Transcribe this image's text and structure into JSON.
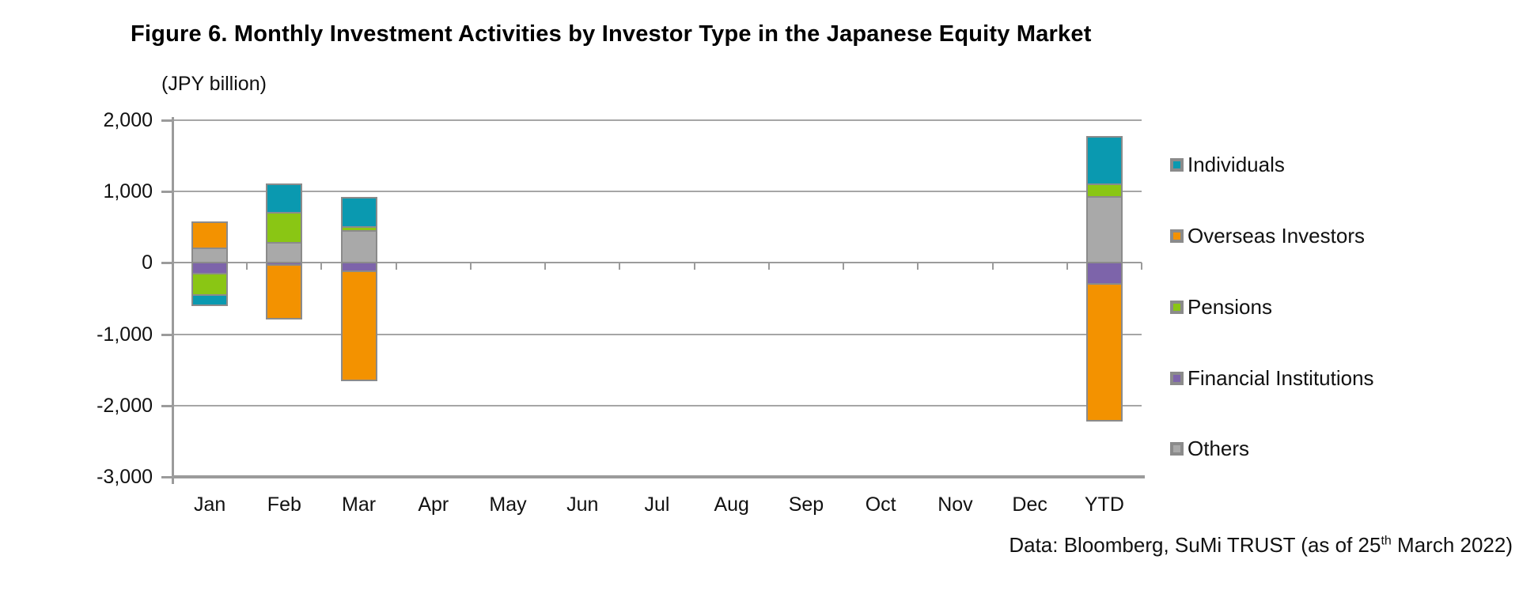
{
  "title": "Figure 6. Monthly Investment Activities by Investor Type in the Japanese Equity Market",
  "footer": {
    "prefix": "Data: Bloomberg, SuMi TRUST (as of 25",
    "superscript": "th",
    "suffix": " March 2022)"
  },
  "colors": {
    "individuals": "#0a99b0",
    "overseas_investors": "#f39200",
    "pensions": "#8ac614",
    "financial_institutions": "#7d64aa",
    "others": "#a9a9a9",
    "segment_border": "#8b8b8b",
    "gridline": "#a6a6a6",
    "axis": "#9b9b9b"
  },
  "chart_data": {
    "type": "bar",
    "stacked": true,
    "title": "Figure 6. Monthly Investment Activities by Investor Type in the Japanese Equity Market",
    "ylabel": "(JPY billion)",
    "xlabel": "",
    "categories": [
      "Jan",
      "Feb",
      "Mar",
      "Apr",
      "May",
      "Jun",
      "Jul",
      "Aug",
      "Sep",
      "Oct",
      "Nov",
      "Dec",
      "YTD"
    ],
    "series": [
      {
        "name": "Individuals",
        "color": "#0a99b0",
        "values": [
          -140,
          400,
          410,
          0,
          0,
          0,
          0,
          0,
          0,
          0,
          0,
          0,
          670
        ]
      },
      {
        "name": "Overseas Investors",
        "color": "#f39200",
        "values": [
          370,
          -750,
          -1530,
          0,
          0,
          0,
          0,
          0,
          0,
          0,
          0,
          0,
          -1910
        ]
      },
      {
        "name": "Pensions",
        "color": "#8ac614",
        "values": [
          -300,
          420,
          50,
          0,
          0,
          0,
          0,
          0,
          0,
          0,
          0,
          0,
          170
        ]
      },
      {
        "name": "Financial Institutions",
        "color": "#7d64aa",
        "values": [
          -150,
          -30,
          -120,
          0,
          0,
          0,
          0,
          0,
          0,
          0,
          0,
          0,
          -300
        ]
      },
      {
        "name": "Others",
        "color": "#a9a9a9",
        "values": [
          200,
          280,
          450,
          0,
          0,
          0,
          0,
          0,
          0,
          0,
          0,
          0,
          930
        ]
      }
    ],
    "plot_order": [
      "Others",
      "Financial Institutions",
      "Pensions",
      "Overseas Investors",
      "Individuals"
    ],
    "ylim": [
      -3000,
      2000
    ],
    "yticks": [
      2000,
      1000,
      0,
      -1000,
      -2000,
      -3000
    ],
    "ytick_labels": [
      "2,000",
      "1,000",
      "0",
      "-1,000",
      "-2,000",
      "-3,000"
    ],
    "grid": true,
    "legend_position": "right"
  }
}
